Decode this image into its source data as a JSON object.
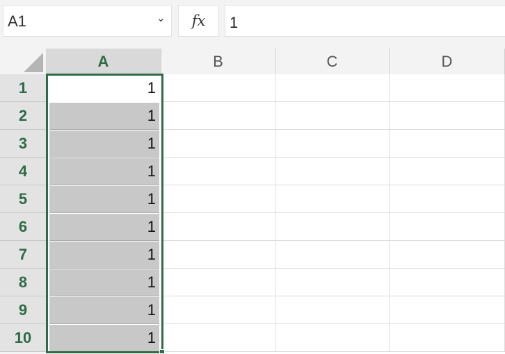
{
  "name_box": {
    "value": "A1"
  },
  "formula_bar": {
    "fx_label": "fx",
    "value": "1"
  },
  "columns": [
    "A",
    "B",
    "C",
    "D"
  ],
  "selected_column": "A",
  "rows": [
    "1",
    "2",
    "3",
    "4",
    "5",
    "6",
    "7",
    "8",
    "9",
    "10"
  ],
  "column_a_values": [
    "1",
    "1",
    "1",
    "1",
    "1",
    "1",
    "1",
    "1",
    "1",
    "1"
  ],
  "active_cell": "A1",
  "selection_range": "A1:A10",
  "colors": {
    "accent": "#2e6b46",
    "selection_fill": "#c8c8c8"
  }
}
